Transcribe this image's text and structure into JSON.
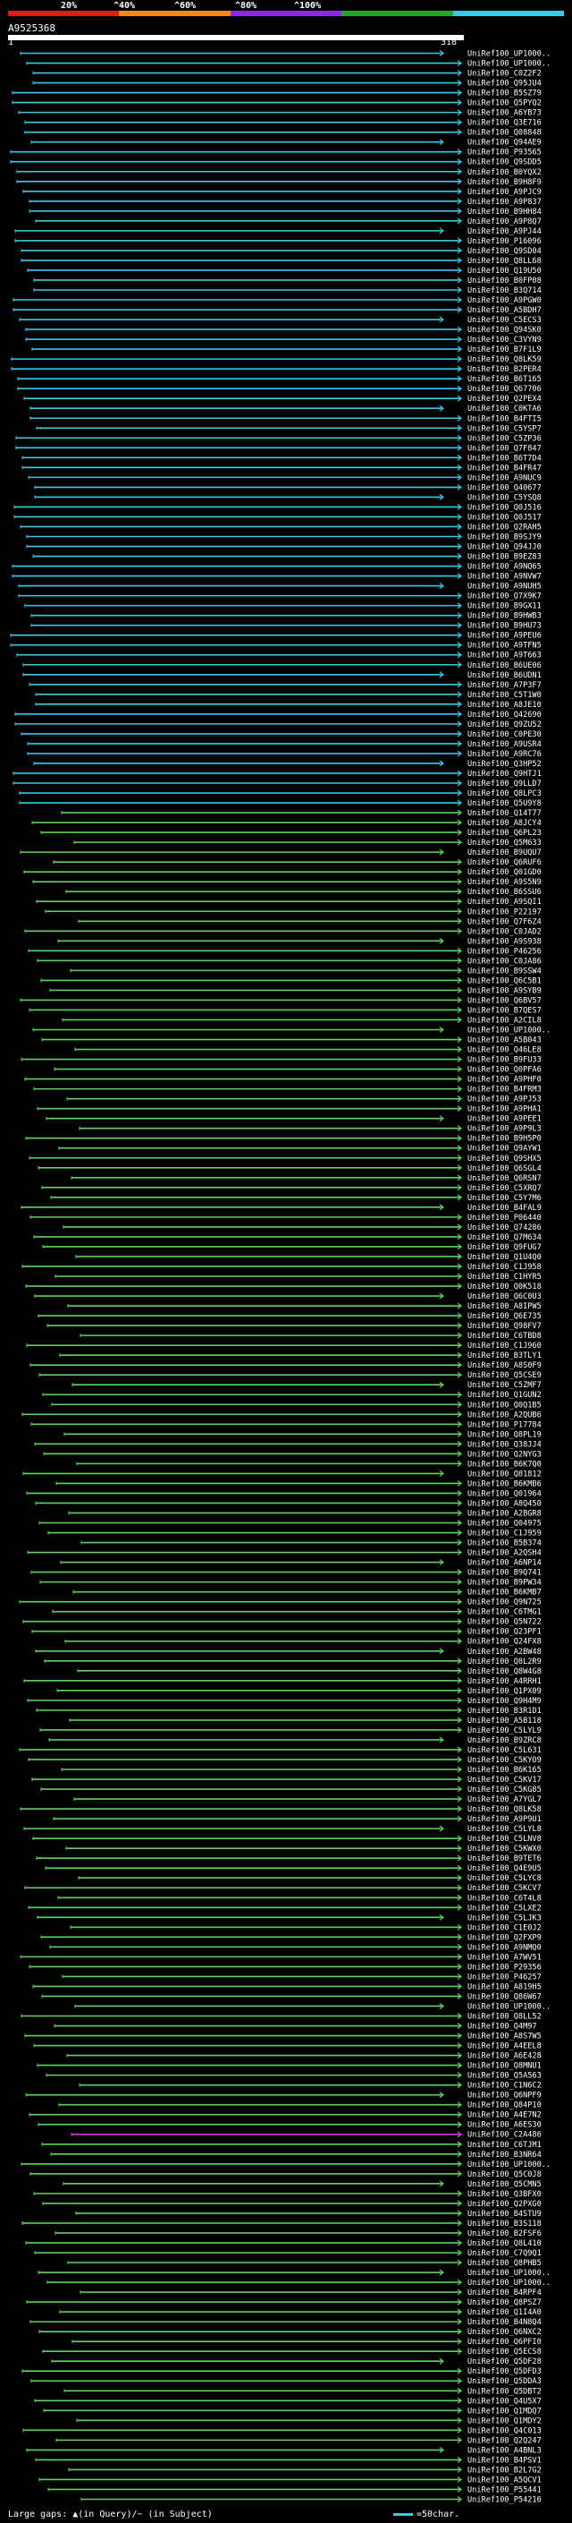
{
  "scale": {
    "labels": [
      "20%",
      "^40%",
      "^60%",
      "^80%",
      "^100%"
    ],
    "colors": [
      "#e01b1b",
      "#f08a1a",
      "#8a2be2",
      "#2aa32a",
      "#38c9e6"
    ]
  },
  "query": {
    "id": "A9525368",
    "start": "1",
    "end": "318"
  },
  "hits": [
    {
      "id": "UniRef100_UP1000..",
      "color": "cyan"
    },
    {
      "id": "UniRef100_UP1000..",
      "color": "cyan"
    },
    {
      "id": "UniRef100_C0Z2F2",
      "color": "cyan"
    },
    {
      "id": "UniRef100_Q95JU4",
      "color": "cyan"
    },
    {
      "id": "UniRef100_B5SZ79",
      "color": "cyan"
    },
    {
      "id": "UniRef100_Q5PYQ2",
      "color": "cyan"
    },
    {
      "id": "UniRef100_A6YB73",
      "color": "cyan"
    },
    {
      "id": "UniRef100_Q3E716",
      "color": "cyan"
    },
    {
      "id": "UniRef100_Q08848",
      "color": "cyan"
    },
    {
      "id": "UniRef100_Q94AE9",
      "color": "cyan"
    },
    {
      "id": "UniRef100_P93565",
      "color": "cyan"
    },
    {
      "id": "UniRef100_Q9SDD5",
      "color": "cyan"
    },
    {
      "id": "UniRef100_B0YQX2",
      "color": "cyan"
    },
    {
      "id": "UniRef100_B9H8F9",
      "color": "cyan"
    },
    {
      "id": "UniRef100_A9PJC9",
      "color": "cyan"
    },
    {
      "id": "UniRef100_A9P837",
      "color": "cyan"
    },
    {
      "id": "UniRef100_B9HH84",
      "color": "cyan"
    },
    {
      "id": "UniRef100_A9P8Q7",
      "color": "cyan"
    },
    {
      "id": "UniRef100_A9PJ44",
      "color": "cyan"
    },
    {
      "id": "UniRef100_P16096",
      "color": "cyan"
    },
    {
      "id": "UniRef100_Q9SD04",
      "color": "cyan"
    },
    {
      "id": "UniRef100_Q8LL68",
      "color": "cyan"
    },
    {
      "id": "UniRef100_Q19U50",
      "color": "cyan"
    },
    {
      "id": "UniRef100_B0FP08",
      "color": "cyan"
    },
    {
      "id": "UniRef100_B3Q714",
      "color": "cyan"
    },
    {
      "id": "UniRef100_A9PGW0",
      "color": "cyan"
    },
    {
      "id": "UniRef100_A5BDH7",
      "color": "cyan"
    },
    {
      "id": "UniRef100_C5ECS3",
      "color": "cyan"
    },
    {
      "id": "UniRef100_Q94SK0",
      "color": "cyan"
    },
    {
      "id": "UniRef100_C3VYN9",
      "color": "cyan"
    },
    {
      "id": "UniRef100_B7F1L9",
      "color": "cyan"
    },
    {
      "id": "UniRef100_Q8LK59",
      "color": "cyan"
    },
    {
      "id": "UniRef100_B2PER4",
      "color": "cyan"
    },
    {
      "id": "UniRef100_B6T165",
      "color": "cyan"
    },
    {
      "id": "UniRef100_Q67706",
      "color": "cyan"
    },
    {
      "id": "UniRef100_Q2PEX4",
      "color": "cyan"
    },
    {
      "id": "UniRef100_C0KTA6",
      "color": "cyan"
    },
    {
      "id": "UniRef100_B4FTI5",
      "color": "cyan"
    },
    {
      "id": "UniRef100_C5YSP7",
      "color": "cyan"
    },
    {
      "id": "UniRef100_C5ZP36",
      "color": "cyan"
    },
    {
      "id": "UniRef100_Q7F847",
      "color": "cyan"
    },
    {
      "id": "UniRef100_B6T7D4",
      "color": "cyan"
    },
    {
      "id": "UniRef100_B4FR47",
      "color": "cyan"
    },
    {
      "id": "UniRef100_A9NUC9",
      "color": "cyan"
    },
    {
      "id": "UniRef100_Q40677",
      "color": "cyan"
    },
    {
      "id": "UniRef100_C5YSQ8",
      "color": "cyan"
    },
    {
      "id": "UniRef100_Q0J516",
      "color": "cyan"
    },
    {
      "id": "UniRef100_Q0J517",
      "color": "cyan"
    },
    {
      "id": "UniRef100_Q2RAH5",
      "color": "cyan"
    },
    {
      "id": "UniRef100_B9SJY9",
      "color": "cyan"
    },
    {
      "id": "UniRef100_Q94JJ0",
      "color": "cyan"
    },
    {
      "id": "UniRef100_B9EZ83",
      "color": "cyan"
    },
    {
      "id": "UniRef100_A9NQ65",
      "color": "cyan"
    },
    {
      "id": "UniRef100_A9NVW7",
      "color": "cyan"
    },
    {
      "id": "UniRef100_A9NUH5",
      "color": "cyan"
    },
    {
      "id": "UniRef100_Q7X9K7",
      "color": "cyan"
    },
    {
      "id": "UniRef100_B9GX11",
      "color": "cyan"
    },
    {
      "id": "UniRef100_B9HWB3",
      "color": "cyan"
    },
    {
      "id": "UniRef100_B9HU73",
      "color": "cyan"
    },
    {
      "id": "UniRef100_A9PEU6",
      "color": "cyan"
    },
    {
      "id": "UniRef100_A9TFN5",
      "color": "cyan"
    },
    {
      "id": "UniRef100_A9T663",
      "color": "cyan"
    },
    {
      "id": "UniRef100_B6UE06",
      "color": "cyan"
    },
    {
      "id": "UniRef100_B6UDN1",
      "color": "cyan"
    },
    {
      "id": "UniRef100_A7P3F7",
      "color": "cyan"
    },
    {
      "id": "UniRef100_C5T1W0",
      "color": "cyan"
    },
    {
      "id": "UniRef100_A8JE10",
      "color": "cyan"
    },
    {
      "id": "UniRef100_Q42690",
      "color": "cyan"
    },
    {
      "id": "UniRef100_Q9ZU52",
      "color": "cyan"
    },
    {
      "id": "UniRef100_C0PE30",
      "color": "cyan"
    },
    {
      "id": "UniRef100_A9USR4",
      "color": "cyan"
    },
    {
      "id": "UniRef100_A9RC76",
      "color": "cyan"
    },
    {
      "id": "UniRef100_Q3HP52",
      "color": "cyan"
    },
    {
      "id": "UniRef100_Q9HTJ1",
      "color": "cyan"
    },
    {
      "id": "UniRef100_Q9LLD7",
      "color": "cyan"
    },
    {
      "id": "UniRef100_Q8LPC3",
      "color": "cyan"
    },
    {
      "id": "UniRef100_Q5U9Y8",
      "color": "cyan"
    },
    {
      "id": "UniRef100_Q14T77",
      "color": "green"
    },
    {
      "id": "UniRef100_A8JCY4",
      "color": "green"
    },
    {
      "id": "UniRef100_Q6PL23",
      "color": "green"
    },
    {
      "id": "UniRef100_Q5M633",
      "color": "green"
    },
    {
      "id": "UniRef100_B9UQU7",
      "color": "green"
    },
    {
      "id": "UniRef100_Q6RUF6",
      "color": "green"
    },
    {
      "id": "UniRef100_Q01GD0",
      "color": "green"
    },
    {
      "id": "UniRef100_A9S5N9",
      "color": "green"
    },
    {
      "id": "UniRef100_B6SSU6",
      "color": "green"
    },
    {
      "id": "UniRef100_A9SQI1",
      "color": "green"
    },
    {
      "id": "UniRef100_P22197",
      "color": "green"
    },
    {
      "id": "UniRef100_Q7F6Z4",
      "color": "green"
    },
    {
      "id": "UniRef100_C0JAD2",
      "color": "green"
    },
    {
      "id": "UniRef100_A9S938",
      "color": "green"
    },
    {
      "id": "UniRef100_P46256",
      "color": "green"
    },
    {
      "id": "UniRef100_C0JA86",
      "color": "green"
    },
    {
      "id": "UniRef100_B9SSW4",
      "color": "green"
    },
    {
      "id": "UniRef100_Q6C5B1",
      "color": "green"
    },
    {
      "id": "UniRef100_A9SYB9",
      "color": "green"
    },
    {
      "id": "UniRef100_Q6BV57",
      "color": "green"
    },
    {
      "id": "UniRef100_B7QES7",
      "color": "green"
    },
    {
      "id": "UniRef100_A2CIL8",
      "color": "green"
    },
    {
      "id": "UniRef100_UP1000..",
      "color": "green"
    },
    {
      "id": "UniRef100_A5B043",
      "color": "green"
    },
    {
      "id": "UniRef100_Q46LE8",
      "color": "green"
    },
    {
      "id": "UniRef100_B9FU33",
      "color": "green"
    },
    {
      "id": "UniRef100_Q0PFA6",
      "color": "green"
    },
    {
      "id": "UniRef100_A9PHF0",
      "color": "green"
    },
    {
      "id": "UniRef100_B4FRM3",
      "color": "green"
    },
    {
      "id": "UniRef100_A9PJ53",
      "color": "green"
    },
    {
      "id": "UniRef100_A9PHA1",
      "color": "green"
    },
    {
      "id": "UniRef100_A9PEE1",
      "color": "green"
    },
    {
      "id": "UniRef100_A9P9L3",
      "color": "green"
    },
    {
      "id": "UniRef100_B9H5P0",
      "color": "green"
    },
    {
      "id": "UniRef100_Q9AYW1",
      "color": "green"
    },
    {
      "id": "UniRef100_Q9SHX5",
      "color": "green"
    },
    {
      "id": "UniRef100_Q6SGL4",
      "color": "green"
    },
    {
      "id": "UniRef100_Q6RSN7",
      "color": "green"
    },
    {
      "id": "UniRef100_C5XRQ7",
      "color": "green"
    },
    {
      "id": "UniRef100_C5Y7M6",
      "color": "green"
    },
    {
      "id": "UniRef100_B4FAL9",
      "color": "green"
    },
    {
      "id": "UniRef100_P06440",
      "color": "green"
    },
    {
      "id": "UniRef100_Q74286",
      "color": "green"
    },
    {
      "id": "UniRef100_Q7M634",
      "color": "green"
    },
    {
      "id": "UniRef100_Q9FUG7",
      "color": "green"
    },
    {
      "id": "UniRef100_Q1U4Q0",
      "color": "green"
    },
    {
      "id": "UniRef100_C1J958",
      "color": "green"
    },
    {
      "id": "UniRef100_C1HYR5",
      "color": "green"
    },
    {
      "id": "UniRef100_Q0K518",
      "color": "green"
    },
    {
      "id": "UniRef100_Q6C0U3",
      "color": "green"
    },
    {
      "id": "UniRef100_A8IPW5",
      "color": "green"
    },
    {
      "id": "UniRef100_Q6E735",
      "color": "green"
    },
    {
      "id": "UniRef100_Q98FV7",
      "color": "green"
    },
    {
      "id": "UniRef100_C6TBD8",
      "color": "green"
    },
    {
      "id": "UniRef100_C1J960",
      "color": "green"
    },
    {
      "id": "UniRef100_B3TLY1",
      "color": "green"
    },
    {
      "id": "UniRef100_A8S0F9",
      "color": "green"
    },
    {
      "id": "UniRef100_Q5CSE9",
      "color": "green"
    },
    {
      "id": "UniRef100_C5ZMF7",
      "color": "green"
    },
    {
      "id": "UniRef100_Q1GUN2",
      "color": "green"
    },
    {
      "id": "UniRef100_Q0Q1B5",
      "color": "green"
    },
    {
      "id": "UniRef100_A2QUB6",
      "color": "green"
    },
    {
      "id": "UniRef100_P17784",
      "color": "green"
    },
    {
      "id": "UniRef100_Q8PL19",
      "color": "green"
    },
    {
      "id": "UniRef100_Q38JJ4",
      "color": "green"
    },
    {
      "id": "UniRef100_Q2NYG3",
      "color": "green"
    },
    {
      "id": "UniRef100_B6K7Q0",
      "color": "green"
    },
    {
      "id": "UniRef100_Q81812",
      "color": "green"
    },
    {
      "id": "UniRef100_B6KMB6",
      "color": "green"
    },
    {
      "id": "UniRef100_Q01964",
      "color": "green"
    },
    {
      "id": "UniRef100_A8Q450",
      "color": "green"
    },
    {
      "id": "UniRef100_A2BGR8",
      "color": "green"
    },
    {
      "id": "UniRef100_Q04975",
      "color": "green"
    },
    {
      "id": "UniRef100_C1J959",
      "color": "green"
    },
    {
      "id": "UniRef100_B5B374",
      "color": "green"
    },
    {
      "id": "UniRef100_A2QSH4",
      "color": "green"
    },
    {
      "id": "UniRef100_A6NP14",
      "color": "green"
    },
    {
      "id": "UniRef100_B9Q741",
      "color": "green"
    },
    {
      "id": "UniRef100_B9PW34",
      "color": "green"
    },
    {
      "id": "UniRef100_B6KMB7",
      "color": "green"
    },
    {
      "id": "UniRef100_Q9N725",
      "color": "green"
    },
    {
      "id": "UniRef100_C6TMG1",
      "color": "green"
    },
    {
      "id": "UniRef100_Q5N722",
      "color": "green"
    },
    {
      "id": "UniRef100_Q23PF1",
      "color": "green"
    },
    {
      "id": "UniRef100_Q24FX8",
      "color": "green"
    },
    {
      "id": "UniRef100_A2BW48",
      "color": "green"
    },
    {
      "id": "UniRef100_Q8L2R9",
      "color": "green"
    },
    {
      "id": "UniRef100_Q8W4G8",
      "color": "green"
    },
    {
      "id": "UniRef100_A4RRH1",
      "color": "green"
    },
    {
      "id": "UniRef100_Q1PX09",
      "color": "green"
    },
    {
      "id": "UniRef100_Q9H4M9",
      "color": "green"
    },
    {
      "id": "UniRef100_B3R1D1",
      "color": "green"
    },
    {
      "id": "UniRef100_A5B118",
      "color": "green"
    },
    {
      "id": "UniRef100_C5LYL9",
      "color": "green"
    },
    {
      "id": "UniRef100_B9ZRC8",
      "color": "green"
    },
    {
      "id": "UniRef100_C5L631",
      "color": "green"
    },
    {
      "id": "UniRef100_C5KYO9",
      "color": "green"
    },
    {
      "id": "UniRef100_B6K165",
      "color": "green"
    },
    {
      "id": "UniRef100_C5KV17",
      "color": "green"
    },
    {
      "id": "UniRef100_C5KG85",
      "color": "green"
    },
    {
      "id": "UniRef100_A7YGL7",
      "color": "green"
    },
    {
      "id": "UniRef100_Q8LK58",
      "color": "green"
    },
    {
      "id": "UniRef100_A9P9U1",
      "color": "green"
    },
    {
      "id": "UniRef100_C5LYL8",
      "color": "green"
    },
    {
      "id": "UniRef100_C5LNV8",
      "color": "green"
    },
    {
      "id": "UniRef100_C5KWX0",
      "color": "green"
    },
    {
      "id": "UniRef100_B9TET6",
      "color": "green"
    },
    {
      "id": "UniRef100_Q4E9U5",
      "color": "green"
    },
    {
      "id": "UniRef100_C5LYC8",
      "color": "green"
    },
    {
      "id": "UniRef100_C5KCV7",
      "color": "green"
    },
    {
      "id": "UniRef100_C6T4L8",
      "color": "green"
    },
    {
      "id": "UniRef100_C5LXE2",
      "color": "green"
    },
    {
      "id": "UniRef100_C5LJK3",
      "color": "green"
    },
    {
      "id": "UniRef100_C1E0J2",
      "color": "green"
    },
    {
      "id": "UniRef100_Q2FXP9",
      "color": "green"
    },
    {
      "id": "UniRef100_A9NMQ0",
      "color": "green"
    },
    {
      "id": "UniRef100_A7WV51",
      "color": "green"
    },
    {
      "id": "UniRef100_P29356",
      "color": "green"
    },
    {
      "id": "UniRef100_P46257",
      "color": "green"
    },
    {
      "id": "UniRef100_A819H5",
      "color": "green"
    },
    {
      "id": "UniRef100_Q86W67",
      "color": "green"
    },
    {
      "id": "UniRef100_UP1000..",
      "color": "green"
    },
    {
      "id": "UniRef100_Q8LL52",
      "color": "green"
    },
    {
      "id": "UniRef100_Q4M97",
      "color": "green"
    },
    {
      "id": "UniRef100_A8S7W5",
      "color": "green"
    },
    {
      "id": "UniRef100_A4EEL8",
      "color": "green"
    },
    {
      "id": "UniRef100_A6E428",
      "color": "green"
    },
    {
      "id": "UniRef100_Q8MNU1",
      "color": "green"
    },
    {
      "id": "UniRef100_Q5A563",
      "color": "green"
    },
    {
      "id": "UniRef100_C1N6C2",
      "color": "green"
    },
    {
      "id": "UniRef100_Q6NPF9",
      "color": "green"
    },
    {
      "id": "UniRef100_Q84P10",
      "color": "green"
    },
    {
      "id": "UniRef100_A4E7N2",
      "color": "green"
    },
    {
      "id": "UniRef100_A6ES30",
      "color": "green"
    },
    {
      "id": "UniRef100_C2A486",
      "color": "magenta"
    },
    {
      "id": "UniRef100_C6TJM1",
      "color": "green"
    },
    {
      "id": "UniRef100_B3NR64",
      "color": "green"
    },
    {
      "id": "UniRef100_UP1000..",
      "color": "green"
    },
    {
      "id": "UniRef100_Q5C0J8",
      "color": "green"
    },
    {
      "id": "UniRef100_Q5CMN5",
      "color": "green"
    },
    {
      "id": "UniRef100_Q3BFX0",
      "color": "green"
    },
    {
      "id": "UniRef100_Q2PXG0",
      "color": "green"
    },
    {
      "id": "UniRef100_B4STU9",
      "color": "green"
    },
    {
      "id": "UniRef100_B3S118",
      "color": "green"
    },
    {
      "id": "UniRef100_B2FSF6",
      "color": "green"
    },
    {
      "id": "UniRef100_Q8L410",
      "color": "green"
    },
    {
      "id": "UniRef100_C7Q9Q1",
      "color": "green"
    },
    {
      "id": "UniRef100_Q8PHB5",
      "color": "green"
    },
    {
      "id": "UniRef100_UP1000..",
      "color": "green"
    },
    {
      "id": "UniRef100_UP1000..",
      "color": "green"
    },
    {
      "id": "UniRef100_B4RPF4",
      "color": "green"
    },
    {
      "id": "UniRef100_Q8PSZ7",
      "color": "green"
    },
    {
      "id": "UniRef100_Q1I4A0",
      "color": "green"
    },
    {
      "id": "UniRef100_B4N8Q4",
      "color": "green"
    },
    {
      "id": "UniRef100_Q6NXC2",
      "color": "green"
    },
    {
      "id": "UniRef100_Q6PFI0",
      "color": "green"
    },
    {
      "id": "UniRef100_Q5ECS8",
      "color": "green"
    },
    {
      "id": "UniRef100_Q5DF28",
      "color": "green"
    },
    {
      "id": "UniRef100_Q5DFD3",
      "color": "green"
    },
    {
      "id": "UniRef100_Q5DDA3",
      "color": "green"
    },
    {
      "id": "UniRef100_Q5DBT2",
      "color": "green"
    },
    {
      "id": "UniRef100_Q4U5X7",
      "color": "green"
    },
    {
      "id": "UniRef100_Q1MDQ7",
      "color": "green"
    },
    {
      "id": "UniRef100_Q1MDY2",
      "color": "green"
    },
    {
      "id": "UniRef100_Q4C013",
      "color": "green"
    },
    {
      "id": "UniRef100_Q2Q247",
      "color": "green"
    },
    {
      "id": "UniRef100_A4BNL3",
      "color": "green"
    },
    {
      "id": "UniRef100_B4PSV1",
      "color": "green"
    },
    {
      "id": "UniRef100_B2L7G2",
      "color": "green"
    },
    {
      "id": "UniRef100_A5QCV1",
      "color": "green"
    },
    {
      "id": "UniRef100_P55441",
      "color": "green"
    },
    {
      "id": "UniRef100_P54216",
      "color": "green"
    }
  ],
  "legend": {
    "gaps_text": "Large gaps: ▲(in Query)/~ (in Subject)",
    "scale_text": "=50char."
  }
}
